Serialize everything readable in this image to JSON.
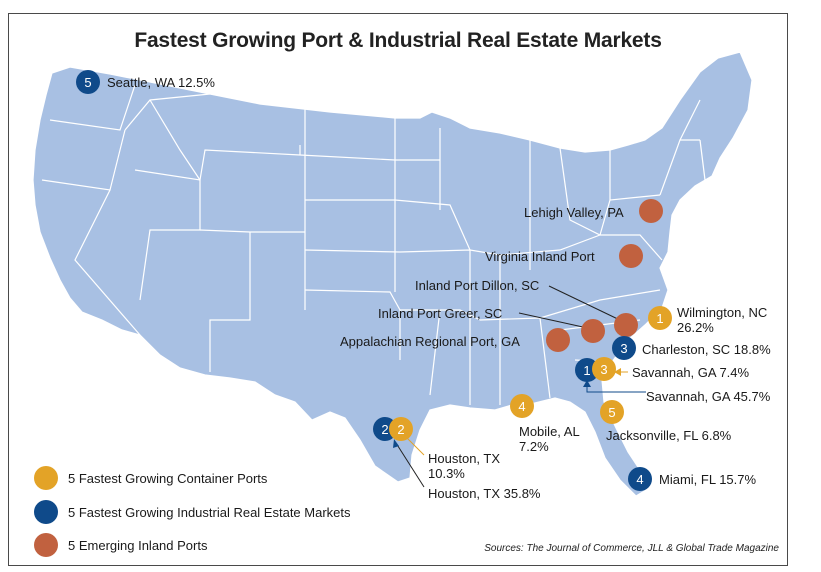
{
  "title": "Fastest Growing Port & Industrial Real Estate Markets",
  "colors": {
    "container": "#e3a327",
    "industrial": "#0f4a8a",
    "inland": "#c1613f",
    "land": "#a8c0e3",
    "state_border": "#ffffff"
  },
  "markers": [
    {
      "id": "seattle",
      "type": "industrial",
      "number": "5",
      "label": "Seattle, WA 12.5%"
    },
    {
      "id": "lehigh",
      "type": "inland",
      "number": "",
      "label": "Lehigh Valley, PA"
    },
    {
      "id": "virginia",
      "type": "inland",
      "number": "",
      "label": "Virginia Inland Port"
    },
    {
      "id": "dillon",
      "type": "inland",
      "number": "",
      "label": "Inland Port Dillon, SC"
    },
    {
      "id": "greer",
      "type": "inland",
      "number": "",
      "label": "Inland Port Greer, SC"
    },
    {
      "id": "appalachian",
      "type": "inland",
      "number": "",
      "label": "Appalachian Regional Port, GA"
    },
    {
      "id": "wilmington",
      "type": "container",
      "number": "1",
      "label_line1": "Wilmington, NC",
      "label_line2": "26.2%"
    },
    {
      "id": "charleston",
      "type": "industrial",
      "number": "3",
      "label": "Charleston, SC 18.8%"
    },
    {
      "id": "savannah-container",
      "type": "container",
      "number": "3",
      "label": "Savannah, GA 7.4%"
    },
    {
      "id": "savannah-industrial",
      "type": "industrial",
      "number": "1",
      "label": "Savannah, GA 45.7%"
    },
    {
      "id": "mobile",
      "type": "container",
      "number": "4",
      "label_line1": "Mobile, AL",
      "label_line2": "7.2%"
    },
    {
      "id": "jacksonville",
      "type": "container",
      "number": "5",
      "label": "Jacksonville, FL 6.8%"
    },
    {
      "id": "miami",
      "type": "industrial",
      "number": "4",
      "label": "Miami, FL 15.7%"
    },
    {
      "id": "houston-industrial",
      "type": "industrial",
      "number": "2",
      "label": "Houston, TX 35.8%"
    },
    {
      "id": "houston-container",
      "type": "container",
      "number": "2",
      "label_line1": "Houston, TX",
      "label_line2": "10.3%"
    }
  ],
  "legend": [
    {
      "type": "container",
      "label": "5 Fastest Growing Container Ports"
    },
    {
      "type": "industrial",
      "label": "5 Fastest Growing Industrial Real Estate Markets"
    },
    {
      "type": "inland",
      "label": "5 Emerging Inland Ports"
    }
  ],
  "source": "Sources: The Journal of Commerce, JLL & Global Trade Magazine"
}
